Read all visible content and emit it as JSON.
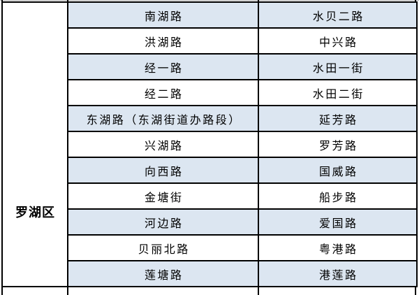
{
  "table": {
    "region": "罗湖区",
    "rows": [
      {
        "col1": "南湖路",
        "col2": "水贝二路"
      },
      {
        "col1": "洪湖路",
        "col2": "中兴路"
      },
      {
        "col1": "经一路",
        "col2": "水田一街"
      },
      {
        "col1": "经二路",
        "col2": "水田二街"
      },
      {
        "col1": "东湖路（东湖街道办路段）",
        "col2": "延芳路"
      },
      {
        "col1": "兴湖路",
        "col2": "罗芳路"
      },
      {
        "col1": "向西路",
        "col2": "国威路"
      },
      {
        "col1": "金塘街",
        "col2": "船步路"
      },
      {
        "col1": "河边路",
        "col2": "爱国路"
      },
      {
        "col1": "贝丽北路",
        "col2": "粤港路"
      },
      {
        "col1": "莲塘路",
        "col2": "港莲路"
      }
    ]
  },
  "colors": {
    "row_highlight": "#dce6f1",
    "row_plain": "#ffffff",
    "border": "#000000",
    "text": "#000000",
    "background": "#ffffff"
  }
}
